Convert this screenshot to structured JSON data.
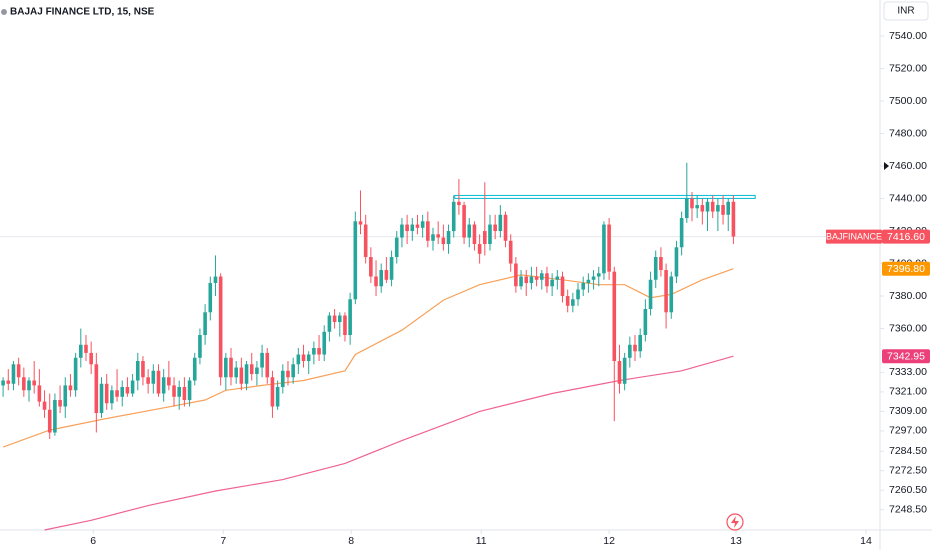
{
  "chart_data": {
    "type": "candlestick",
    "title": "BAJAJ FINANCE LTD, 15, NSE",
    "currency": "INR",
    "up_color": "#26a69a",
    "down_color": "#f7525f",
    "ylim": [
      7236,
      7562.2
    ],
    "xlim": [
      -0.6,
      169.3
    ],
    "yticks": [
      {
        "value": 7540,
        "label": "7540.00"
      },
      {
        "value": 7520,
        "label": "7520.00"
      },
      {
        "value": 7500,
        "label": "7500.00"
      },
      {
        "value": 7480,
        "label": "7480.00"
      },
      {
        "value": 7460,
        "label": "7460.00"
      },
      {
        "value": 7440,
        "label": "7440.00"
      },
      {
        "value": 7420,
        "label": "7420.00"
      },
      {
        "value": 7400,
        "label": "7400.00"
      },
      {
        "value": 7380,
        "label": "7380.00"
      },
      {
        "value": 7360,
        "label": "7360.00"
      },
      {
        "value": 7333,
        "label": "7333.00"
      },
      {
        "value": 7321,
        "label": "7321.00"
      },
      {
        "value": 7309,
        "label": "7309.00"
      },
      {
        "value": 7297,
        "label": "7297.00"
      },
      {
        "value": 7284.5,
        "label": "7284.50"
      },
      {
        "value": 7272.5,
        "label": "7272.50"
      },
      {
        "value": 7260.5,
        "label": "7260.50"
      },
      {
        "value": 7248.5,
        "label": "7248.50"
      }
    ],
    "xticks": [
      {
        "value": 17.4,
        "label": "6"
      },
      {
        "value": 42.5,
        "label": "7"
      },
      {
        "value": 67.2,
        "label": "8"
      },
      {
        "value": 92.3,
        "label": "11"
      },
      {
        "value": 117,
        "label": "12"
      },
      {
        "value": 141.5,
        "label": "13"
      },
      {
        "value": 166.6,
        "label": "14"
      }
    ],
    "candles": [
      [
        7325,
        7330,
        7318,
        7328
      ],
      [
        7328,
        7335,
        7322,
        7326
      ],
      [
        7326,
        7340,
        7322,
        7338
      ],
      [
        7338,
        7342,
        7325,
        7330
      ],
      [
        7330,
        7336,
        7318,
        7322
      ],
      [
        7322,
        7330,
        7315,
        7328
      ],
      [
        7328,
        7340,
        7320,
        7325
      ],
      [
        7325,
        7335,
        7312,
        7315
      ],
      [
        7315,
        7322,
        7305,
        7310
      ],
      [
        7310,
        7320,
        7292,
        7296
      ],
      [
        7296,
        7320,
        7294,
        7316
      ],
      [
        7316,
        7325,
        7308,
        7312
      ],
      [
        7312,
        7330,
        7305,
        7325
      ],
      [
        7325,
        7332,
        7318,
        7322
      ],
      [
        7322,
        7345,
        7318,
        7342
      ],
      [
        7342,
        7360,
        7336,
        7350
      ],
      [
        7350,
        7356,
        7340,
        7345
      ],
      [
        7345,
        7352,
        7332,
        7338
      ],
      [
        7338,
        7345,
        7296,
        7308
      ],
      [
        7308,
        7330,
        7305,
        7326
      ],
      [
        7326,
        7332,
        7310,
        7314
      ],
      [
        7314,
        7325,
        7310,
        7322
      ],
      [
        7322,
        7335,
        7315,
        7318
      ],
      [
        7318,
        7328,
        7312,
        7324
      ],
      [
        7324,
        7330,
        7318,
        7320
      ],
      [
        7320,
        7332,
        7318,
        7328
      ],
      [
        7328,
        7345,
        7322,
        7340
      ],
      [
        7340,
        7343,
        7325,
        7330
      ],
      [
        7330,
        7335,
        7320,
        7326
      ],
      [
        7326,
        7338,
        7320,
        7334
      ],
      [
        7334,
        7338,
        7318,
        7320
      ],
      [
        7320,
        7335,
        7315,
        7330
      ],
      [
        7330,
        7340,
        7322,
        7325
      ],
      [
        7325,
        7330,
        7312,
        7318
      ],
      [
        7318,
        7328,
        7310,
        7324
      ],
      [
        7324,
        7330,
        7312,
        7316
      ],
      [
        7316,
        7330,
        7312,
        7328
      ],
      [
        7328,
        7345,
        7325,
        7342
      ],
      [
        7342,
        7360,
        7338,
        7356
      ],
      [
        7356,
        7375,
        7350,
        7370
      ],
      [
        7370,
        7392,
        7365,
        7388
      ],
      [
        7388,
        7405,
        7380,
        7392
      ],
      [
        7392,
        7394,
        7325,
        7330
      ],
      [
        7330,
        7345,
        7322,
        7342
      ],
      [
        7342,
        7348,
        7325,
        7330
      ],
      [
        7330,
        7340,
        7326,
        7336
      ],
      [
        7336,
        7342,
        7322,
        7326
      ],
      [
        7326,
        7340,
        7322,
        7338
      ],
      [
        7338,
        7345,
        7328,
        7332
      ],
      [
        7332,
        7340,
        7325,
        7336
      ],
      [
        7336,
        7350,
        7330,
        7345
      ],
      [
        7345,
        7348,
        7326,
        7330
      ],
      [
        7330,
        7334,
        7305,
        7312
      ],
      [
        7312,
        7328,
        7310,
        7324
      ],
      [
        7324,
        7338,
        7320,
        7334
      ],
      [
        7334,
        7340,
        7325,
        7330
      ],
      [
        7330,
        7342,
        7326,
        7338
      ],
      [
        7338,
        7348,
        7332,
        7344
      ],
      [
        7344,
        7350,
        7336,
        7340
      ],
      [
        7340,
        7346,
        7332,
        7344
      ],
      [
        7344,
        7352,
        7338,
        7348
      ],
      [
        7348,
        7356,
        7340,
        7344
      ],
      [
        7344,
        7362,
        7340,
        7358
      ],
      [
        7358,
        7370,
        7352,
        7368
      ],
      [
        7368,
        7372,
        7360,
        7364
      ],
      [
        7364,
        7370,
        7355,
        7368
      ],
      [
        7368,
        7370,
        7352,
        7356
      ],
      [
        7356,
        7382,
        7350,
        7378
      ],
      [
        7378,
        7432,
        7375,
        7426
      ],
      [
        7426,
        7445,
        7418,
        7424
      ],
      [
        7424,
        7430,
        7400,
        7404
      ],
      [
        7404,
        7410,
        7388,
        7392
      ],
      [
        7392,
        7402,
        7380,
        7386
      ],
      [
        7386,
        7400,
        7382,
        7396
      ],
      [
        7396,
        7404,
        7388,
        7390
      ],
      [
        7390,
        7408,
        7386,
        7404
      ],
      [
        7404,
        7420,
        7400,
        7416
      ],
      [
        7416,
        7428,
        7410,
        7424
      ],
      [
        7424,
        7430,
        7412,
        7420
      ],
      [
        7420,
        7428,
        7414,
        7424
      ],
      [
        7424,
        7430,
        7418,
        7422
      ],
      [
        7422,
        7430,
        7416,
        7426
      ],
      [
        7426,
        7432,
        7410,
        7414
      ],
      [
        7414,
        7422,
        7408,
        7418
      ],
      [
        7418,
        7426,
        7412,
        7416
      ],
      [
        7416,
        7424,
        7408,
        7412
      ],
      [
        7412,
        7424,
        7406,
        7420
      ],
      [
        7420,
        7442,
        7416,
        7438
      ],
      [
        7438,
        7452,
        7430,
        7436
      ],
      [
        7436,
        7438,
        7412,
        7416
      ],
      [
        7416,
        7428,
        7410,
        7424
      ],
      [
        7424,
        7426,
        7408,
        7412
      ],
      [
        7412,
        7418,
        7400,
        7406
      ],
      [
        7420,
        7450,
        7405,
        7412
      ],
      [
        7412,
        7430,
        7408,
        7424
      ],
      [
        7424,
        7430,
        7415,
        7420
      ],
      [
        7420,
        7436,
        7416,
        7430
      ],
      [
        7430,
        7432,
        7410,
        7414
      ],
      [
        7414,
        7418,
        7395,
        7400
      ],
      [
        7400,
        7404,
        7382,
        7386
      ],
      [
        7386,
        7396,
        7384,
        7392
      ],
      [
        7392,
        7396,
        7380,
        7388
      ],
      [
        7388,
        7398,
        7384,
        7392
      ],
      [
        7392,
        7398,
        7386,
        7390
      ],
      [
        7390,
        7396,
        7384,
        7394
      ],
      [
        7394,
        7398,
        7382,
        7386
      ],
      [
        7386,
        7394,
        7380,
        7390
      ],
      [
        7390,
        7396,
        7384,
        7392
      ],
      [
        7392,
        7395,
        7376,
        7380
      ],
      [
        7380,
        7384,
        7370,
        7374
      ],
      [
        7374,
        7382,
        7370,
        7378
      ],
      [
        7378,
        7388,
        7374,
        7384
      ],
      [
        7384,
        7392,
        7380,
        7388
      ],
      [
        7388,
        7394,
        7382,
        7390
      ],
      [
        7390,
        7396,
        7384,
        7392
      ],
      [
        7392,
        7398,
        7386,
        7394
      ],
      [
        7394,
        7426,
        7390,
        7424
      ],
      [
        7424,
        7428,
        7390,
        7395
      ],
      [
        7395,
        7398,
        7303,
        7340
      ],
      [
        7340,
        7350,
        7320,
        7326
      ],
      [
        7326,
        7345,
        7322,
        7342
      ],
      [
        7342,
        7355,
        7336,
        7350
      ],
      [
        7350,
        7356,
        7340,
        7346
      ],
      [
        7346,
        7360,
        7342,
        7356
      ],
      [
        7356,
        7378,
        7352,
        7372
      ],
      [
        7372,
        7395,
        7368,
        7390
      ],
      [
        7390,
        7408,
        7385,
        7404
      ],
      [
        7404,
        7410,
        7392,
        7396
      ],
      [
        7396,
        7400,
        7360,
        7370
      ],
      [
        7370,
        7395,
        7366,
        7392
      ],
      [
        7392,
        7414,
        7388,
        7410
      ],
      [
        7410,
        7432,
        7405,
        7428
      ],
      [
        7428,
        7462,
        7425,
        7440
      ],
      [
        7440,
        7444,
        7426,
        7434
      ],
      [
        7434,
        7442,
        7428,
        7436
      ],
      [
        7436,
        7440,
        7424,
        7432
      ],
      [
        7432,
        7440,
        7420,
        7438
      ],
      [
        7438,
        7442,
        7428,
        7432
      ],
      [
        7432,
        7440,
        7420,
        7436
      ],
      [
        7436,
        7442,
        7424,
        7430
      ],
      [
        7430,
        7440,
        7420,
        7438
      ],
      [
        7438,
        7442,
        7412,
        7416.6
      ]
    ],
    "series": [
      {
        "color": "#f7a15a",
        "x": [
          0,
          9,
          19,
          29,
          39,
          43,
          50,
          58,
          66,
          68,
          77,
          85,
          92,
          100,
          108,
          115,
          120,
          125,
          129,
          135,
          141
        ],
        "values": [
          7287,
          7297.5,
          7304,
          7310,
          7316,
          7322,
          7325,
          7328,
          7334,
          7344,
          7359,
          7377.5,
          7387,
          7393,
          7390,
          7387,
          7387,
          7379,
          7381,
          7390,
          7396.8
        ]
      },
      {
        "color": "#f06292",
        "x": [
          8,
          17,
          28,
          41,
          54,
          66,
          77,
          92,
          106,
          119,
          131,
          141
        ],
        "values": [
          7236,
          7242,
          7251,
          7260,
          7267,
          7277,
          7291,
          7309,
          7320,
          7328,
          7334,
          7342.95
        ]
      }
    ],
    "hline": {
      "value": 7441,
      "x": [
        87.2,
        145.2
      ],
      "color": "#00bcd4"
    },
    "price_labels": [
      {
        "name": "BAJFINANCE",
        "value": 7416.6,
        "label": "7416.60",
        "color": "#f7525f"
      },
      {
        "value": 7396.8,
        "label": "7396.80",
        "color": "#ff9800"
      },
      {
        "value": 7342.95,
        "label": "7342.95",
        "color": "#ec407a"
      }
    ]
  }
}
